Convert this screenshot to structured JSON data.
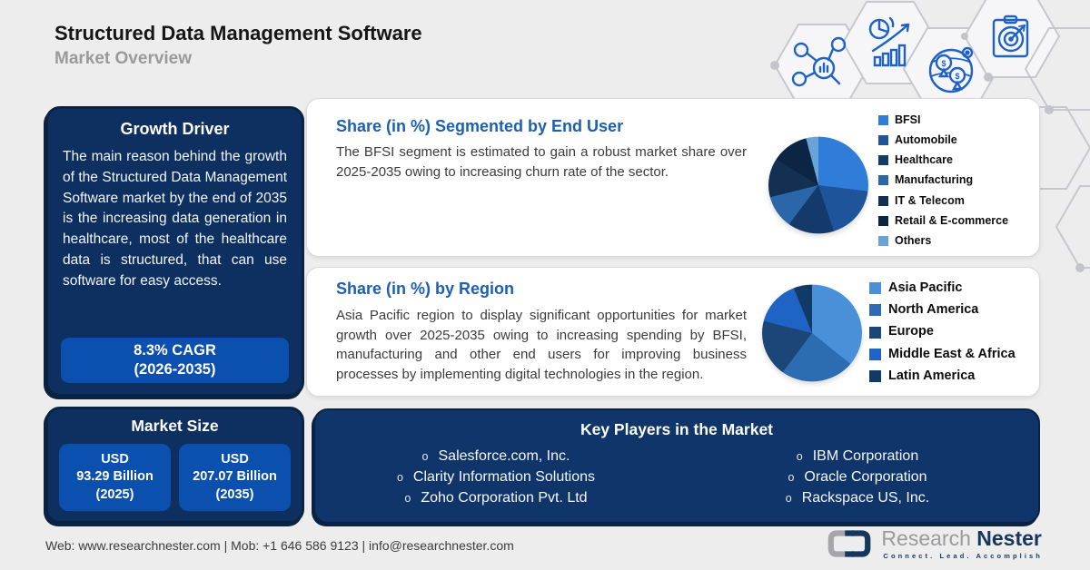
{
  "header": {
    "title": "Structured Data Management Software",
    "subtitle": "Market Overview"
  },
  "growth_driver": {
    "title": "Growth Driver",
    "body": "The main reason behind the growth of the Structured Data Management Software market by the end of 2035 is the increasing data generation in healthcare, most of the healthcare data is structured, that can use software for easy access.",
    "cagr_value": "8.3% CAGR",
    "cagr_period": "(2026-2035)"
  },
  "market_size": {
    "title": "Market Size",
    "items": [
      {
        "currency": "USD",
        "amount": "93.29 Billion",
        "year": "(2025)"
      },
      {
        "currency": "USD",
        "amount": "207.07 Billion",
        "year": "(2035)"
      }
    ]
  },
  "chart_data": [
    {
      "type": "pie",
      "title": "Share (in %) Segmented by End User",
      "description": "The BFSI segment is estimated to gain a robust market share over 2025-2035 owing to increasing churn rate of the sector.",
      "labels": [
        "BFSI",
        "Automobile",
        "Healthcare",
        "Manufacturing",
        "IT & Telecom",
        "Retail & E-commerce",
        "Others"
      ],
      "values": [
        27,
        18,
        15,
        11,
        13,
        12,
        4
      ],
      "colors": [
        "#2F7CD9",
        "#1D549A",
        "#143A6B",
        "#2B67A8",
        "#132F52",
        "#0D2544",
        "#6AA3D8"
      ],
      "legend_position": "right"
    },
    {
      "type": "pie",
      "title": "Share (in %) by Region",
      "description": "Asia Pacific region to display significant opportunities for market growth over 2025-2035 owing to increasing spending by BFSI, manufacturing and other end users for improving business processes by implementing digital technologies in the region.",
      "labels": [
        "Asia Pacific",
        "North America",
        "Europe",
        "Middle East & Africa",
        "Latin America"
      ],
      "values": [
        36,
        24,
        19,
        15,
        6
      ],
      "colors": [
        "#4A90D9",
        "#2B6CB3",
        "#1B4677",
        "#1F64C4",
        "#123A67"
      ],
      "legend_position": "right"
    }
  ],
  "key_players": {
    "title": "Key Players in the Market",
    "bullet": "o",
    "columns": [
      [
        "Salesforce.com, Inc.",
        "Clarity Information Solutions",
        "Zoho Corporation Pvt. Ltd"
      ],
      [
        "IBM Corporation",
        "Oracle Corporation",
        "Rackspace US, Inc."
      ]
    ]
  },
  "footer": {
    "contact": "Web: www.researchnester.com | Mob: +1 646 586 9123 | info@researchnester.com",
    "logo": {
      "name_light": "Research",
      "name_bold": "Nester",
      "tagline": "Connect. Lead. Accomplish"
    }
  },
  "decor": {
    "icons": [
      "market-research-network-icon",
      "growth-analytics-icon",
      "global-market-icon",
      "target-plan-icon"
    ]
  },
  "colors": {
    "panel_navy": "#0E3060",
    "panel_border": "#0A2342",
    "key_players_navy": "#10356A",
    "accent_blue": "#0B50AE",
    "card_heading_blue": "#1D5FB0",
    "background": "#EDEDEE"
  }
}
